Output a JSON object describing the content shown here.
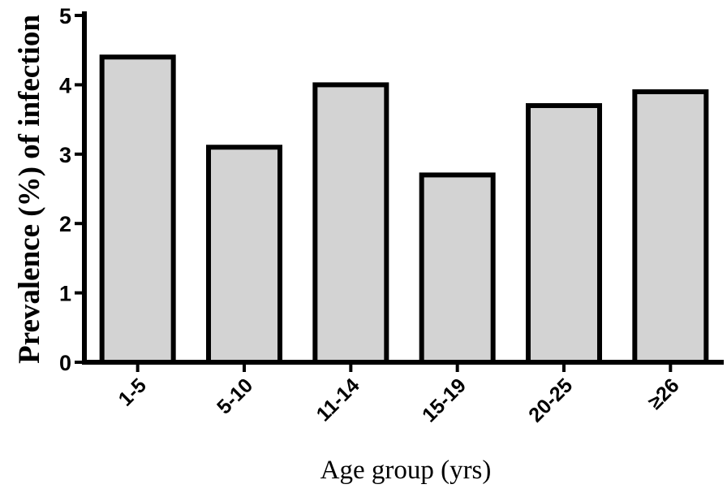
{
  "chart_data": {
    "type": "bar",
    "title": "",
    "xlabel": "Age group (yrs)",
    "ylabel": "Prevalence (%) of infection",
    "categories": [
      "1-5",
      "5-10",
      "11-14",
      "15-19",
      "20-25",
      "≥26"
    ],
    "values": [
      4.4,
      3.1,
      4.0,
      2.7,
      3.7,
      3.9
    ],
    "ylim": [
      0,
      5
    ],
    "yticks": [
      "0",
      "1",
      "2",
      "3",
      "4",
      "5"
    ],
    "grid": false,
    "legend": "none",
    "colors": {
      "bar_fill": "#d3d3d3",
      "bar_stroke": "#000000",
      "axis": "#000000"
    }
  }
}
